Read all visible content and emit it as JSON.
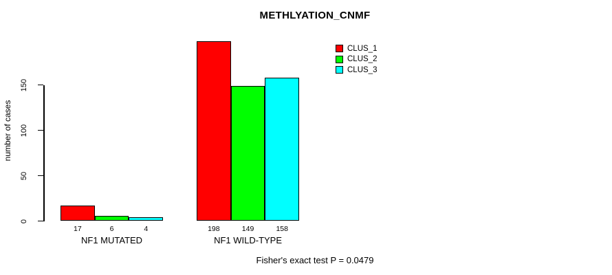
{
  "chart_data": {
    "type": "bar",
    "grouped": true,
    "title": "METHLYATION_CNMF",
    "ylabel": "number of cases",
    "xlabel": "",
    "categories": [
      "NF1 MUTATED",
      "NF1 WILD-TYPE"
    ],
    "series": [
      {
        "name": "CLUS_1",
        "color": "#FF0000",
        "values": [
          17,
          198
        ]
      },
      {
        "name": "CLUS_2",
        "color": "#00FF00",
        "values": [
          6,
          149
        ]
      },
      {
        "name": "CLUS_3",
        "color": "#00FFFF",
        "values": [
          4,
          158
        ]
      }
    ],
    "bar_value_labels": [
      [
        17,
        6,
        4
      ],
      [
        198,
        149,
        158
      ]
    ],
    "yticks": [
      0,
      50,
      100,
      150
    ],
    "ylim": [
      0,
      198
    ],
    "grid": false,
    "legend_position": "top-right",
    "bar_border_color": "#000000",
    "annotation": "Fisher's exact test P = 0.0479"
  }
}
